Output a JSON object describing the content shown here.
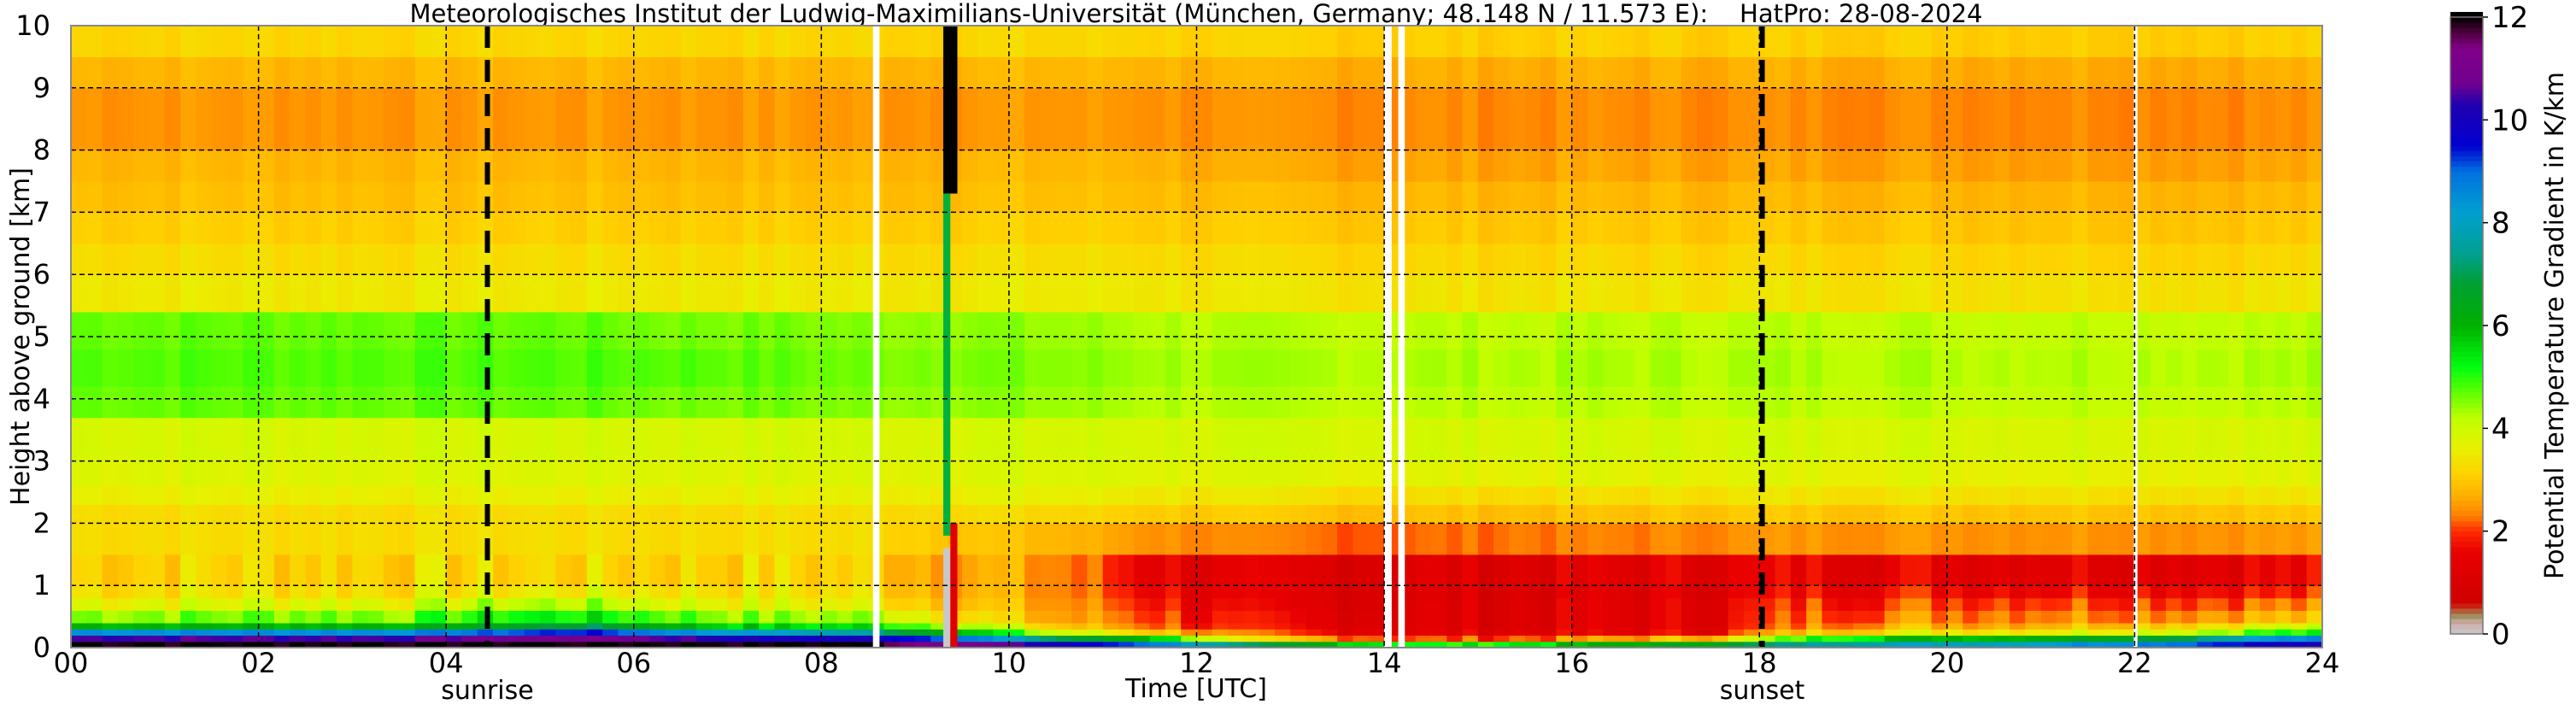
{
  "chart_data": {
    "type": "heatmap",
    "title": "Meteorologisches Institut der Ludwig-Maximilians-Universität (München, Germany; 48.148 N / 11.573 E):    HatPro: 28-08-2024",
    "xlabel": "Time [UTC]",
    "ylabel": "Height above ground [km]",
    "xlim": [
      0,
      24
    ],
    "ylim": [
      0,
      10
    ],
    "x_ticks": [
      "00",
      "02",
      "04",
      "06",
      "08",
      "10",
      "12",
      "14",
      "16",
      "18",
      "20",
      "22",
      "24"
    ],
    "x_tick_values": [
      0,
      2,
      4,
      6,
      8,
      10,
      12,
      14,
      16,
      18,
      20,
      22,
      24
    ],
    "y_ticks": [
      "0",
      "1",
      "2",
      "3",
      "4",
      "5",
      "6",
      "7",
      "8",
      "9",
      "10"
    ],
    "y_tick_values": [
      0,
      1,
      2,
      3,
      4,
      5,
      6,
      7,
      8,
      9,
      10
    ],
    "grid": true,
    "colorbar": {
      "label": "Potential Temperature Gradient in K/km",
      "range": [
        0,
        12
      ],
      "ticks": [
        "0",
        "2",
        "4",
        "6",
        "8",
        "10",
        "12"
      ],
      "tick_values": [
        0,
        2,
        4,
        6,
        8,
        10,
        12
      ]
    },
    "annotations": [
      {
        "label": "sunrise",
        "time": 4.44
      },
      {
        "label": "sunset",
        "time": 18.03
      }
    ],
    "missing_intervals": [
      [
        8.55,
        8.62
      ],
      [
        14.0,
        14.08
      ],
      [
        14.15,
        14.22
      ],
      [
        21.99,
        22.03
      ]
    ],
    "bad_column": [
      9.3,
      9.45
    ],
    "height_levels_top_km": [
      0.1,
      0.2,
      0.3,
      0.4,
      0.6,
      0.8,
      1.0,
      1.5,
      2.0,
      2.3,
      2.6,
      3.0,
      3.7,
      4.2,
      4.8,
      5.4,
      6.0,
      6.5,
      7.0,
      7.5,
      8.0,
      8.5,
      9.0,
      9.5,
      10.0
    ],
    "hour_centers": [
      0.5,
      1.5,
      2.5,
      3.5,
      4.5,
      5.5,
      6.5,
      7.5,
      8.5,
      9.5,
      10.5,
      11.5,
      12.5,
      13.5,
      14.5,
      15.5,
      16.5,
      17.5,
      18.5,
      19.5,
      20.5,
      21.5,
      22.5,
      23.5
    ],
    "values_K_per_km": [
      [
        12,
        10.5,
        8.5,
        6,
        4.6,
        3.8,
        3.4,
        3.2,
        3.3,
        3.3,
        3.6,
        3.8,
        3.9,
        4.7,
        4.8,
        4.7,
        3.5,
        3.3,
        3.1,
        2.9,
        2.8,
        2.5,
        2.5,
        2.8,
        3.2
      ],
      [
        12,
        10.5,
        8.5,
        6,
        4.6,
        3.8,
        3.4,
        3.2,
        3.3,
        3.3,
        3.6,
        3.8,
        3.9,
        4.7,
        4.8,
        4.7,
        3.5,
        3.3,
        3.1,
        2.9,
        2.8,
        2.5,
        2.5,
        2.8,
        3.2
      ],
      [
        12,
        10.5,
        8.5,
        6,
        4.7,
        3.9,
        3.4,
        3.2,
        3.3,
        3.3,
        3.6,
        3.8,
        3.9,
        4.7,
        4.8,
        4.7,
        3.5,
        3.3,
        3.1,
        2.9,
        2.8,
        2.5,
        2.5,
        2.8,
        3.2
      ],
      [
        12,
        10.5,
        8.5,
        6,
        4.6,
        3.8,
        3.4,
        3.2,
        3.3,
        3.3,
        3.6,
        3.8,
        3.9,
        4.7,
        4.8,
        4.7,
        3.5,
        3.3,
        3.1,
        2.9,
        2.8,
        2.5,
        2.5,
        2.8,
        3.2
      ],
      [
        12,
        10.8,
        9,
        6.5,
        5.2,
        4.2,
        3.5,
        3.2,
        3.3,
        3.3,
        3.6,
        3.8,
        3.9,
        4.7,
        4.8,
        4.7,
        3.5,
        3.3,
        3.1,
        2.9,
        2.8,
        2.5,
        2.5,
        2.8,
        3.2
      ],
      [
        12,
        11,
        9.5,
        7,
        5.3,
        4.3,
        3.6,
        3.2,
        3.3,
        3.3,
        3.6,
        3.8,
        3.9,
        4.7,
        4.8,
        4.7,
        3.5,
        3.3,
        3.1,
        2.9,
        2.8,
        2.5,
        2.5,
        2.8,
        3.2
      ],
      [
        12,
        10.5,
        8.5,
        6,
        4.8,
        3.9,
        3.5,
        3.2,
        3.3,
        3.3,
        3.6,
        3.8,
        3.9,
        4.6,
        4.8,
        4.6,
        3.5,
        3.3,
        3.1,
        2.9,
        2.8,
        2.5,
        2.5,
        2.8,
        3.2
      ],
      [
        12,
        10,
        8,
        5.5,
        4.4,
        3.7,
        3.4,
        3.2,
        3.3,
        3.3,
        3.6,
        3.8,
        3.9,
        4.6,
        4.7,
        4.6,
        3.5,
        3.3,
        3.1,
        2.9,
        2.8,
        2.5,
        2.5,
        2.8,
        3.2
      ],
      [
        12,
        10,
        7.5,
        5.5,
        4.4,
        3.6,
        3.3,
        3.1,
        3.3,
        3.3,
        3.6,
        3.8,
        3.9,
        4.5,
        4.6,
        4.5,
        3.5,
        3.3,
        3.1,
        2.9,
        2.8,
        2.5,
        2.5,
        2.8,
        3.2
      ],
      [
        11,
        9,
        6,
        4.5,
        3.4,
        3.0,
        2.8,
        2.7,
        3.0,
        3.3,
        3.6,
        3.8,
        3.9,
        4.5,
        4.6,
        4.5,
        3.5,
        3.3,
        3.1,
        2.9,
        2.8,
        2.5,
        2.5,
        2.8,
        3.2
      ],
      [
        10,
        7,
        4,
        3.0,
        2.6,
        2.5,
        2.4,
        2.4,
        2.8,
        3.2,
        3.6,
        3.8,
        3.9,
        4.4,
        4.5,
        4.4,
        3.5,
        3.3,
        3.1,
        2.9,
        2.8,
        2.5,
        2.5,
        2.8,
        3.2
      ],
      [
        9,
        6,
        3.2,
        2.4,
        2.2,
        2.0,
        1.8,
        1.6,
        2.5,
        3.1,
        3.5,
        3.8,
        3.9,
        4.3,
        4.4,
        4.3,
        3.5,
        3.3,
        3.1,
        2.9,
        2.8,
        2.5,
        2.5,
        2.8,
        3.2
      ],
      [
        7,
        3,
        2.0,
        1.6,
        1.5,
        1.3,
        1.2,
        1.2,
        2.3,
        3.0,
        3.4,
        3.7,
        3.9,
        4.2,
        4.3,
        4.2,
        3.4,
        3.2,
        3.0,
        2.8,
        2.6,
        2.4,
        2.4,
        2.7,
        3.1
      ],
      [
        6,
        2.5,
        1.6,
        1.4,
        1.3,
        1.2,
        1.15,
        1.15,
        2.2,
        2.9,
        3.3,
        3.7,
        3.9,
        4.2,
        4.3,
        4.2,
        3.4,
        3.2,
        3.0,
        2.8,
        2.6,
        2.4,
        2.4,
        2.7,
        3.1
      ],
      [
        5,
        2,
        1.3,
        1.2,
        1.2,
        1.2,
        1.1,
        1.2,
        2.2,
        2.9,
        3.3,
        3.7,
        3.9,
        4.2,
        4.3,
        4.2,
        3.4,
        3.2,
        3.0,
        2.8,
        2.6,
        2.4,
        2.4,
        2.7,
        3.1
      ],
      [
        5.5,
        2.2,
        1.3,
        1.2,
        1.2,
        1.2,
        1.1,
        1.2,
        2.3,
        2.9,
        3.3,
        3.7,
        3.9,
        4.2,
        4.3,
        4.2,
        3.4,
        3.2,
        3.0,
        2.8,
        2.6,
        2.4,
        2.4,
        2.7,
        3.1
      ],
      [
        6,
        2.5,
        1.4,
        1.3,
        1.3,
        1.3,
        1.2,
        1.3,
        2.3,
        2.9,
        3.3,
        3.7,
        3.9,
        4.2,
        4.3,
        4.2,
        3.4,
        3.2,
        3.0,
        2.8,
        2.6,
        2.4,
        2.4,
        2.7,
        3.1
      ],
      [
        6.5,
        3,
        1.6,
        1.4,
        1.4,
        1.4,
        1.3,
        1.4,
        2.4,
        3.0,
        3.4,
        3.7,
        3.9,
        4.2,
        4.3,
        4.2,
        3.4,
        3.2,
        3.0,
        2.8,
        2.6,
        2.4,
        2.4,
        2.7,
        3.1
      ],
      [
        7.5,
        5,
        3.0,
        2.4,
        2.2,
        2.0,
        1.7,
        1.5,
        2.5,
        3.0,
        3.4,
        3.7,
        3.9,
        4.2,
        4.3,
        4.2,
        3.4,
        3.2,
        3.0,
        2.8,
        2.6,
        2.4,
        2.4,
        2.7,
        3.1
      ],
      [
        8,
        6,
        3.5,
        2.8,
        2.4,
        2.1,
        1.8,
        1.5,
        2.5,
        3.0,
        3.4,
        3.7,
        3.9,
        4.2,
        4.3,
        4.2,
        3.4,
        3.2,
        3.0,
        2.8,
        2.6,
        2.4,
        2.4,
        2.7,
        3.1
      ],
      [
        8,
        6,
        3.6,
        2.8,
        2.5,
        2.2,
        1.8,
        1.5,
        2.5,
        3.0,
        3.4,
        3.7,
        3.9,
        4.2,
        4.3,
        4.2,
        3.4,
        3.2,
        3.0,
        2.8,
        2.6,
        2.4,
        2.4,
        2.7,
        3.1
      ],
      [
        8.5,
        6.5,
        3.8,
        3.0,
        2.5,
        2.2,
        1.8,
        1.5,
        2.5,
        3.0,
        3.4,
        3.7,
        3.9,
        4.2,
        4.3,
        4.2,
        3.4,
        3.2,
        3.0,
        2.8,
        2.6,
        2.4,
        2.4,
        2.7,
        3.1
      ],
      [
        9,
        7,
        4.2,
        3.3,
        2.6,
        2.2,
        1.8,
        1.5,
        2.5,
        3.0,
        3.4,
        3.7,
        3.9,
        4.2,
        4.3,
        4.2,
        3.4,
        3.2,
        3.0,
        2.8,
        2.6,
        2.4,
        2.4,
        2.7,
        3.1
      ],
      [
        10,
        8.5,
        5,
        3.8,
        2.8,
        2.3,
        1.8,
        1.5,
        2.5,
        3.0,
        3.4,
        3.7,
        3.9,
        4.2,
        4.3,
        4.2,
        3.4,
        3.2,
        3.0,
        2.8,
        2.6,
        2.4,
        2.4,
        2.7,
        3.1
      ]
    ]
  }
}
